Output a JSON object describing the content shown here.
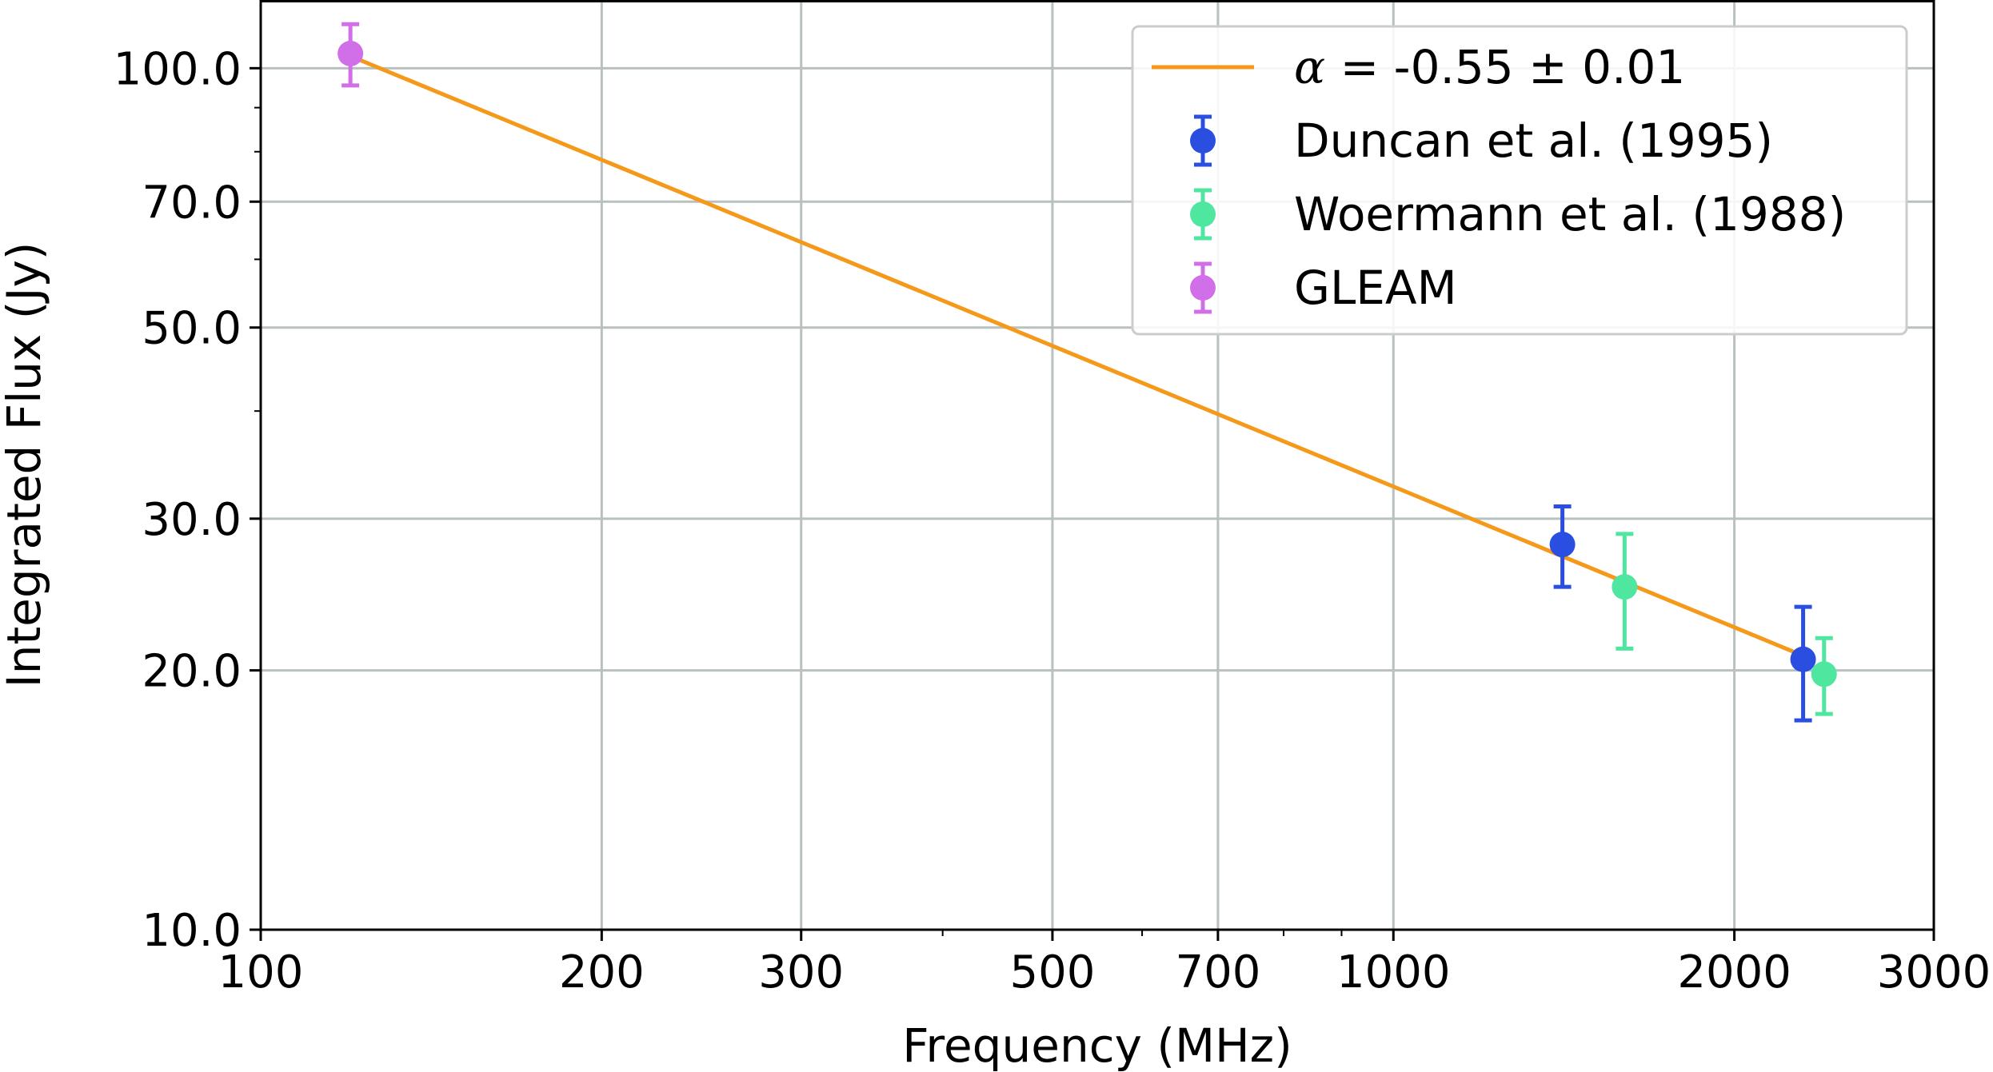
{
  "chart_data": {
    "type": "scatter",
    "xlabel": "Frequency (MHz)",
    "ylabel": "Integrated Flux (Jy)",
    "xscale": "log",
    "yscale": "log",
    "xlim": [
      100,
      3000
    ],
    "ylim": [
      10,
      120
    ],
    "xticks": [
      {
        "value": 100,
        "label": "100"
      },
      {
        "value": 200,
        "label": "200"
      },
      {
        "value": 300,
        "label": "300"
      },
      {
        "value": 500,
        "label": "500"
      },
      {
        "value": 700,
        "label": "700"
      },
      {
        "value": 1000,
        "label": "1000"
      },
      {
        "value": 2000,
        "label": "2000"
      },
      {
        "value": 3000,
        "label": "3000"
      }
    ],
    "yticks": [
      {
        "value": 10,
        "label": "10.0"
      },
      {
        "value": 20,
        "label": "20.0"
      },
      {
        "value": 30,
        "label": "30.0"
      },
      {
        "value": 50,
        "label": "50.0"
      },
      {
        "value": 70,
        "label": "70.0"
      },
      {
        "value": 100,
        "label": "100.0"
      }
    ],
    "x_minor_ticks": [
      400,
      600,
      800,
      900
    ],
    "y_minor_ticks": [
      40,
      60,
      80,
      90
    ],
    "grid": true,
    "legend_position": "top-right",
    "fit": {
      "label_symbol": "α",
      "label_rest": " = -0.55 ± 0.01",
      "color": "#f5991b",
      "x_range": [
        120,
        2300
      ],
      "y_range": [
        103.3,
        20.8
      ]
    },
    "series": [
      {
        "name": "Duncan et al. (1995)",
        "color": "#2a4fe0",
        "points": [
          {
            "x": 1410,
            "y": 28.0,
            "err": 3.0
          },
          {
            "x": 2300,
            "y": 20.6,
            "err": 3.1
          }
        ]
      },
      {
        "name": "Woermann et al. (1988)",
        "color": "#4fe6a0",
        "points": [
          {
            "x": 1600,
            "y": 25.0,
            "err": 3.8
          },
          {
            "x": 2400,
            "y": 19.8,
            "err": 2.0
          }
        ]
      },
      {
        "name": "GLEAM",
        "color": "#d16fe8",
        "points": [
          {
            "x": 120,
            "y": 104.0,
            "err": 8.5
          }
        ]
      }
    ]
  }
}
